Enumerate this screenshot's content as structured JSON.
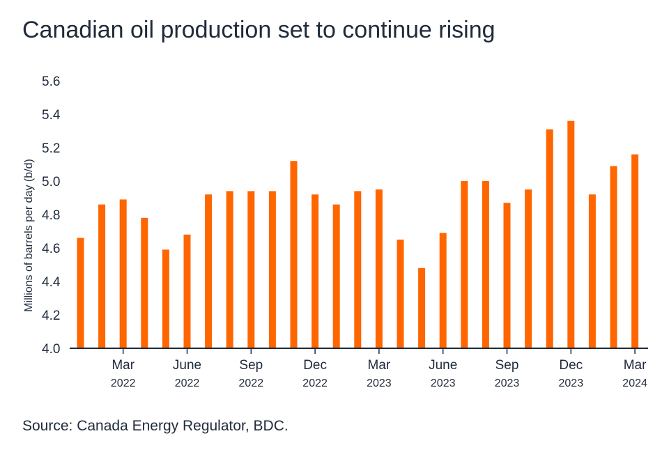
{
  "title": "Canadian oil production set to continue rising",
  "source": "Source: Canada Energy Regulator, BDC.",
  "colors": {
    "bar": "#ff6600",
    "axis": "#1f2a3a",
    "text": "#1f2a3a"
  },
  "chart_data": {
    "type": "bar",
    "title": "Canadian oil production set to continue rising",
    "ylabel": "Millions of barrels per day (b/d)",
    "xlabel": "",
    "ylim": [
      4.0,
      5.6
    ],
    "yticks": [
      "4.0",
      "4.2",
      "4.4",
      "4.6",
      "4.8",
      "5.0",
      "5.2",
      "5.4",
      "5.6"
    ],
    "grid": false,
    "legend": "none",
    "categories": [
      "Jan 2022",
      "Feb 2022",
      "Mar 2022",
      "Apr 2022",
      "May 2022",
      "Jun 2022",
      "Jul 2022",
      "Aug 2022",
      "Sep 2022",
      "Oct 2022",
      "Nov 2022",
      "Dec 2022",
      "Jan 2023",
      "Feb 2023",
      "Mar 2023",
      "Apr 2023",
      "May 2023",
      "Jun 2023",
      "Jul 2023",
      "Aug 2023",
      "Sep 2023",
      "Oct 2023",
      "Nov 2023",
      "Dec 2023",
      "Jan 2024",
      "Feb 2024",
      "Mar 2024"
    ],
    "values": [
      4.66,
      4.86,
      4.89,
      4.78,
      4.59,
      4.68,
      4.92,
      4.94,
      4.94,
      4.94,
      5.12,
      4.92,
      4.86,
      4.94,
      4.95,
      4.65,
      4.48,
      4.69,
      5.0,
      5.0,
      4.87,
      4.95,
      5.31,
      5.36,
      4.92,
      5.09,
      5.16
    ],
    "x_tick_labels": [
      {
        "index": 2,
        "month": "Mar",
        "year": "2022"
      },
      {
        "index": 5,
        "month": "June",
        "year": "2022"
      },
      {
        "index": 8,
        "month": "Sep",
        "year": "2022"
      },
      {
        "index": 11,
        "month": "Dec",
        "year": "2022"
      },
      {
        "index": 14,
        "month": "Mar",
        "year": "2023"
      },
      {
        "index": 17,
        "month": "June",
        "year": "2023"
      },
      {
        "index": 20,
        "month": "Sep",
        "year": "2023"
      },
      {
        "index": 23,
        "month": "Dec",
        "year": "2023"
      },
      {
        "index": 26,
        "month": "Mar",
        "year": "2024"
      }
    ]
  }
}
